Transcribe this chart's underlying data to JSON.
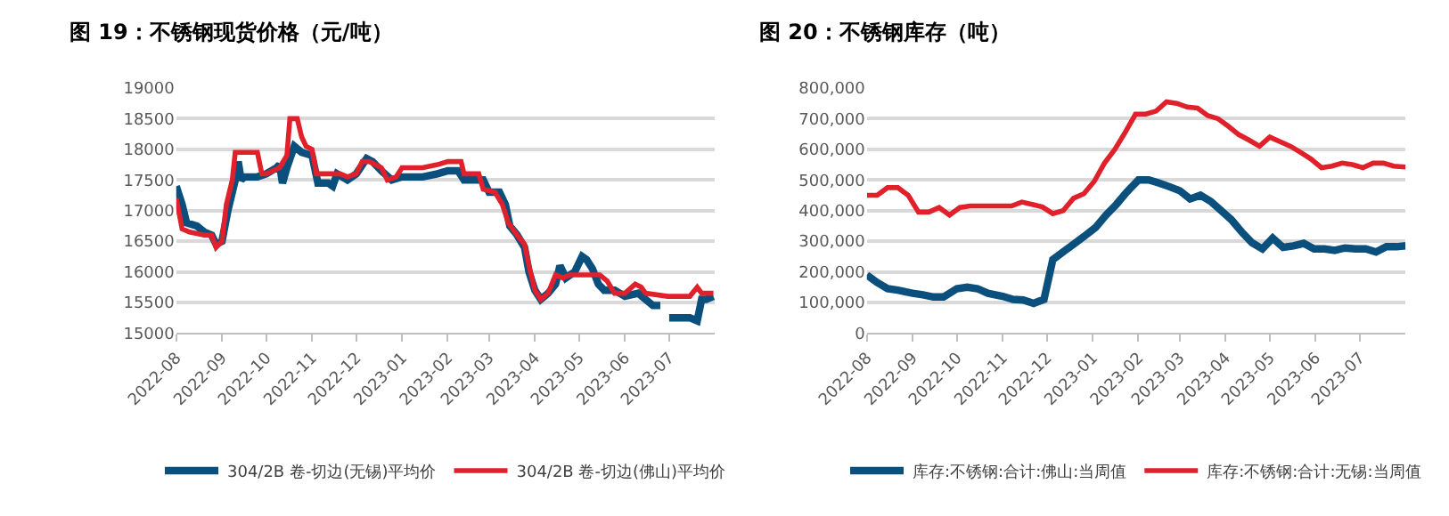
{
  "chart_data": [
    {
      "type": "line",
      "title": "图 19：不锈钢现货价格（元/吨）",
      "xlim": [
        "2022-08",
        "2023-08"
      ],
      "xticks": [
        "2022-08",
        "2022-09",
        "2022-10",
        "2022-11",
        "2022-12",
        "2023-01",
        "2023-02",
        "2023-03",
        "2023-04",
        "2023-05",
        "2023-06",
        "2023-07"
      ],
      "ylim": [
        15000,
        19000
      ],
      "yticks": [
        15000,
        15500,
        16000,
        16500,
        17000,
        17500,
        18000,
        18500,
        19000
      ],
      "grid": "y",
      "legend": "bottom",
      "marker": "none",
      "line_style": "solid",
      "series": [
        {
          "name": "304/2B 卷-切边(无锡)平均价",
          "color": "#0b4f7c",
          "x": [
            "2022-08-01",
            "2022-08-05",
            "2022-08-08",
            "2022-08-15",
            "2022-08-20",
            "2022-08-25",
            "2022-08-28",
            "2022-09-01",
            "2022-09-05",
            "2022-09-10",
            "2022-09-12",
            "2022-09-14",
            "2022-09-16",
            "2022-09-25",
            "2022-10-01",
            "2022-10-08",
            "2022-10-10",
            "2022-10-12",
            "2022-10-15",
            "2022-10-20",
            "2022-10-25",
            "2022-11-01",
            "2022-11-05",
            "2022-11-12",
            "2022-11-15",
            "2022-11-18",
            "2022-11-25",
            "2022-12-01",
            "2022-12-08",
            "2022-12-12",
            "2022-12-18",
            "2022-12-25",
            "2023-01-01",
            "2023-01-15",
            "2023-01-25",
            "2023-02-01",
            "2023-02-08",
            "2023-02-12",
            "2023-02-25",
            "2023-03-01",
            "2023-03-08",
            "2023-03-12",
            "2023-03-15",
            "2023-03-20",
            "2023-03-25",
            "2023-03-28",
            "2023-04-01",
            "2023-04-05",
            "2023-04-10",
            "2023-04-15",
            "2023-04-18",
            "2023-04-22",
            "2023-04-28",
            "2023-05-03",
            "2023-05-06",
            "2023-05-10",
            "2023-05-14",
            "2023-05-18",
            "2023-05-25",
            "2023-06-01",
            "2023-06-10",
            "2023-06-15",
            "2023-06-20",
            "2023-06-25",
            "2023-06-28",
            "2023-07-01",
            "2023-07-15",
            "2023-07-20",
            "2023-07-23",
            "2023-07-26",
            "2023-07-31"
          ],
          "values": [
            17400,
            17100,
            16800,
            16750,
            16650,
            16600,
            16450,
            16500,
            17000,
            17500,
            17800,
            17500,
            17550,
            17550,
            17600,
            17700,
            17750,
            17450,
            17700,
            18050,
            17950,
            17900,
            17450,
            17450,
            17400,
            17600,
            17500,
            17600,
            17850,
            17800,
            17650,
            17500,
            17550,
            17550,
            17600,
            17650,
            17650,
            17500,
            17500,
            17300,
            17300,
            17100,
            16750,
            16600,
            16400,
            16000,
            15700,
            15550,
            15650,
            15800,
            16100,
            15900,
            16000,
            16250,
            16200,
            16050,
            15800,
            15700,
            15700,
            15600,
            15650,
            15550,
            15450,
            15450,
            null,
            15250,
            15250,
            15200,
            15550,
            15550,
            15600
          ]
        },
        {
          "name": "304/2B 卷-切边(佛山)平均价",
          "color": "#e0202a",
          "x": [
            "2022-08-01",
            "2022-08-05",
            "2022-08-10",
            "2022-08-20",
            "2022-08-25",
            "2022-08-28",
            "2022-09-01",
            "2022-09-04",
            "2022-09-08",
            "2022-09-10",
            "2022-09-25",
            "2022-09-28",
            "2022-10-01",
            "2022-10-10",
            "2022-10-15",
            "2022-10-17",
            "2022-10-22",
            "2022-10-25",
            "2022-10-28",
            "2022-11-01",
            "2022-11-04",
            "2022-11-20",
            "2022-11-25",
            "2022-12-01",
            "2022-12-05",
            "2022-12-10",
            "2022-12-18",
            "2022-12-22",
            "2022-12-28",
            "2023-01-01",
            "2023-01-15",
            "2023-01-25",
            "2023-02-01",
            "2023-02-10",
            "2023-02-12",
            "2023-02-22",
            "2023-02-25",
            "2023-03-05",
            "2023-03-10",
            "2023-03-14",
            "2023-03-20",
            "2023-03-25",
            "2023-03-28",
            "2023-04-01",
            "2023-04-05",
            "2023-04-10",
            "2023-04-15",
            "2023-04-20",
            "2023-04-25",
            "2023-05-01",
            "2023-05-15",
            "2023-05-20",
            "2023-05-25",
            "2023-06-01",
            "2023-06-08",
            "2023-06-12",
            "2023-06-15",
            "2023-06-30",
            "2023-07-15",
            "2023-07-20",
            "2023-07-23",
            "2023-07-31"
          ],
          "values": [
            17200,
            16700,
            16650,
            16600,
            16600,
            16400,
            16500,
            17100,
            17500,
            17950,
            17950,
            17600,
            17600,
            17700,
            17900,
            18500,
            18500,
            18200,
            18050,
            18000,
            17600,
            17600,
            17550,
            17600,
            17800,
            17800,
            17700,
            17500,
            17550,
            17700,
            17700,
            17750,
            17800,
            17800,
            17600,
            17600,
            17350,
            17300,
            17100,
            16800,
            16600,
            16450,
            16100,
            15700,
            15550,
            15650,
            15950,
            15900,
            15950,
            15950,
            15950,
            15850,
            15650,
            15650,
            15800,
            15750,
            15650,
            15600,
            15600,
            15750,
            15650,
            15650
          ]
        }
      ]
    },
    {
      "type": "line",
      "title": "图 20：不锈钢库存（吨）",
      "xlim": [
        "2022-08",
        "2023-08"
      ],
      "xticks": [
        "2022-08",
        "2022-09",
        "2022-10",
        "2022-11",
        "2022-12",
        "2023-01",
        "2023-02",
        "2023-03",
        "2023-04",
        "2023-05",
        "2023-06",
        "2023-07"
      ],
      "ylim": [
        0,
        800000
      ],
      "yticks": [
        0,
        {
          "value": 100000,
          "label": "100,000"
        },
        {
          "value": 200000,
          "label": "200,000"
        },
        {
          "value": 300000,
          "label": "300,000"
        },
        {
          "value": 400000,
          "label": "400,000"
        },
        {
          "value": 500000,
          "label": "500,000"
        },
        {
          "value": 600000,
          "label": "600,000"
        },
        {
          "value": 700000,
          "label": "700,000"
        },
        {
          "value": 800000,
          "label": "800,000"
        }
      ],
      "grid": "y",
      "legend": "bottom",
      "marker": "none",
      "line_style": "solid",
      "series": [
        {
          "name": "库存:不锈钢:合计:佛山:当周值",
          "color": "#0b4f7c",
          "x": [
            "2022-08-01",
            "2022-08-08",
            "2022-08-15",
            "2022-08-22",
            "2022-09-01",
            "2022-09-08",
            "2022-09-15",
            "2022-09-22",
            "2022-10-01",
            "2022-10-08",
            "2022-10-15",
            "2022-10-22",
            "2022-11-01",
            "2022-11-08",
            "2022-11-15",
            "2022-11-22",
            "2022-11-29",
            "2022-12-05",
            "2022-12-12",
            "2022-12-19",
            "2022-12-26",
            "2023-01-03",
            "2023-01-10",
            "2023-01-17",
            "2023-01-24",
            "2023-02-01",
            "2023-02-08",
            "2023-02-15",
            "2023-02-22",
            "2023-03-01",
            "2023-03-08",
            "2023-03-15",
            "2023-03-22",
            "2023-03-29",
            "2023-04-05",
            "2023-04-12",
            "2023-04-19",
            "2023-04-26",
            "2023-05-03",
            "2023-05-10",
            "2023-05-17",
            "2023-05-24",
            "2023-05-31",
            "2023-06-07",
            "2023-06-14",
            "2023-06-21",
            "2023-06-28",
            "2023-07-05",
            "2023-07-12",
            "2023-07-19",
            "2023-07-26",
            "2023-08-01"
          ],
          "values": [
            190000,
            165000,
            145000,
            140000,
            130000,
            125000,
            118000,
            118000,
            145000,
            150000,
            145000,
            130000,
            120000,
            110000,
            108000,
            97000,
            110000,
            240000,
            265000,
            290000,
            315000,
            345000,
            385000,
            420000,
            460000,
            500000,
            500000,
            490000,
            478000,
            465000,
            438000,
            450000,
            430000,
            400000,
            370000,
            330000,
            295000,
            275000,
            310000,
            280000,
            285000,
            293000,
            275000,
            275000,
            270000,
            278000,
            275000,
            275000,
            265000,
            282000,
            282000,
            285000
          ]
        },
        {
          "name": "库存:不锈钢:合计:无锡:当周值",
          "color": "#e0202a",
          "x": [
            "2022-08-01",
            "2022-08-08",
            "2022-08-15",
            "2022-08-22",
            "2022-08-29",
            "2022-09-05",
            "2022-09-12",
            "2022-09-19",
            "2022-09-26",
            "2022-10-03",
            "2022-10-10",
            "2022-10-17",
            "2022-10-24",
            "2022-10-31",
            "2022-11-07",
            "2022-11-14",
            "2022-11-21",
            "2022-11-28",
            "2022-12-05",
            "2022-12-12",
            "2022-12-19",
            "2022-12-26",
            "2023-01-02",
            "2023-01-09",
            "2023-01-16",
            "2023-01-23",
            "2023-01-30",
            "2023-02-06",
            "2023-02-13",
            "2023-02-20",
            "2023-02-27",
            "2023-03-06",
            "2023-03-13",
            "2023-03-20",
            "2023-03-27",
            "2023-04-03",
            "2023-04-10",
            "2023-04-17",
            "2023-04-24",
            "2023-05-01",
            "2023-05-08",
            "2023-05-15",
            "2023-05-22",
            "2023-05-29",
            "2023-06-05",
            "2023-06-12",
            "2023-06-19",
            "2023-06-26",
            "2023-07-03",
            "2023-07-10",
            "2023-07-17",
            "2023-07-24",
            "2023-08-01"
          ],
          "values": [
            450000,
            450000,
            475000,
            475000,
            450000,
            395000,
            395000,
            410000,
            385000,
            410000,
            415000,
            415000,
            415000,
            415000,
            415000,
            428000,
            420000,
            412000,
            390000,
            400000,
            440000,
            455000,
            495000,
            555000,
            600000,
            655000,
            715000,
            715000,
            725000,
            755000,
            750000,
            738000,
            735000,
            710000,
            700000,
            675000,
            648000,
            630000,
            610000,
            640000,
            625000,
            610000,
            590000,
            568000,
            540000,
            545000,
            555000,
            550000,
            540000,
            555000,
            555000,
            545000,
            542000
          ]
        }
      ]
    }
  ]
}
